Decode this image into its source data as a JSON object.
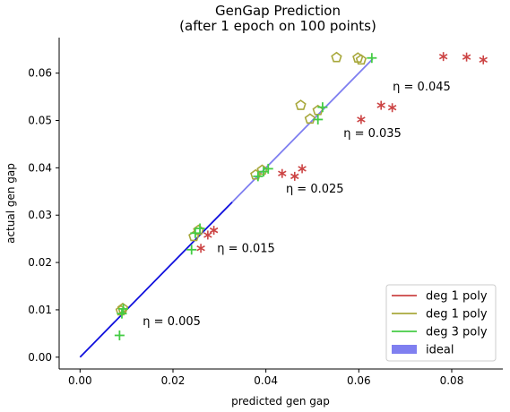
{
  "chart_data": {
    "type": "scatter",
    "title": [
      "GenGap Prediction",
      "(after 1 epoch on 100 points)"
    ],
    "xlabel": "predicted gen gap",
    "ylabel": "actual gen gap",
    "xlim": [
      -0.0045,
      0.091
    ],
    "ylim": [
      -0.0025,
      0.0675
    ],
    "xticks": [
      0.0,
      0.02,
      0.04,
      0.06,
      0.08
    ],
    "xtick_labels": [
      "0.00",
      "0.02",
      "0.04",
      "0.06",
      "0.08"
    ],
    "yticks": [
      0.0,
      0.01,
      0.02,
      0.03,
      0.04,
      0.05,
      0.06
    ],
    "ytick_labels": [
      "0.00",
      "0.01",
      "0.02",
      "0.03",
      "0.04",
      "0.05",
      "0.06"
    ],
    "legend_position": "lower-right",
    "ideal_line": {
      "name": "ideal",
      "x": [
        0.0,
        0.063
      ],
      "y": [
        0.0,
        0.063
      ],
      "color": "#1010dd"
    },
    "series": [
      {
        "name": "deg 1 poly",
        "color": "#cc4444",
        "marker": "asterisk",
        "points": [
          [
            0.026,
            0.023
          ],
          [
            0.0275,
            0.0258
          ],
          [
            0.0288,
            0.0268
          ],
          [
            0.0435,
            0.0388
          ],
          [
            0.0462,
            0.0382
          ],
          [
            0.0478,
            0.0398
          ],
          [
            0.0605,
            0.0502
          ],
          [
            0.0648,
            0.0532
          ],
          [
            0.0672,
            0.0527
          ],
          [
            0.0782,
            0.0635
          ],
          [
            0.0832,
            0.0634
          ],
          [
            0.0868,
            0.0628
          ]
        ]
      },
      {
        "name": "deg 1 poly",
        "color": "#a8a83c",
        "marker": "pentagon",
        "points": [
          [
            0.0088,
            0.0098
          ],
          [
            0.0092,
            0.0103
          ],
          [
            0.0245,
            0.0255
          ],
          [
            0.0255,
            0.0268
          ],
          [
            0.0378,
            0.0385
          ],
          [
            0.0392,
            0.0395
          ],
          [
            0.0475,
            0.0532
          ],
          [
            0.0495,
            0.0503
          ],
          [
            0.0512,
            0.0521
          ],
          [
            0.0552,
            0.0633
          ],
          [
            0.0598,
            0.0632
          ],
          [
            0.0605,
            0.0628
          ]
        ]
      },
      {
        "name": "deg 3 poly",
        "color": "#44cc44",
        "marker": "plus",
        "points": [
          [
            0.0085,
            0.0046
          ],
          [
            0.009,
            0.0092
          ],
          [
            0.0093,
            0.0102
          ],
          [
            0.024,
            0.0227
          ],
          [
            0.0248,
            0.0262
          ],
          [
            0.0258,
            0.0272
          ],
          [
            0.0383,
            0.0382
          ],
          [
            0.0395,
            0.0392
          ],
          [
            0.0405,
            0.0398
          ],
          [
            0.0512,
            0.0502
          ],
          [
            0.0522,
            0.0528
          ],
          [
            0.0628,
            0.0632
          ]
        ]
      }
    ],
    "annotations": [
      {
        "text": "η = 0.005",
        "x": 0.0135,
        "y": 0.0068
      },
      {
        "text": "η = 0.015",
        "x": 0.0295,
        "y": 0.0222
      },
      {
        "text": "η = 0.025",
        "x": 0.0443,
        "y": 0.0348
      },
      {
        "text": "η = 0.035",
        "x": 0.0567,
        "y": 0.0465
      },
      {
        "text": "η = 0.045",
        "x": 0.0673,
        "y": 0.0563
      }
    ],
    "legend": [
      {
        "label": "deg 1 poly",
        "color": "#cc4444",
        "kind": "line"
      },
      {
        "label": "deg 1 poly",
        "color": "#a8a83c",
        "kind": "line"
      },
      {
        "label": "deg 3 poly",
        "color": "#44cc44",
        "kind": "line"
      },
      {
        "label": "ideal",
        "color": "#7f7ff0",
        "kind": "patch"
      }
    ]
  }
}
